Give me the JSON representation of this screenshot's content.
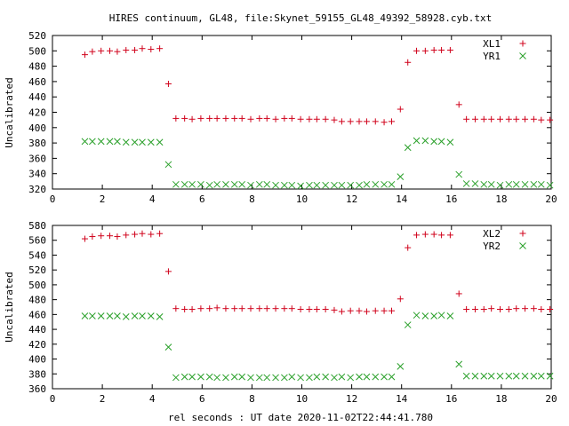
{
  "chart_data": [
    {
      "type": "scatter",
      "title": "HIRES continuum, GL48, file:Skynet_59155_GL48_49392_58928.cyb.txt",
      "xlabel": "",
      "ylabel": "Uncalibrated",
      "xlim": [
        0,
        20
      ],
      "ylim": [
        320,
        520
      ],
      "xticks": [
        0,
        2,
        4,
        6,
        8,
        10,
        12,
        14,
        16,
        18,
        20
      ],
      "yticks": [
        320,
        340,
        360,
        380,
        400,
        420,
        440,
        460,
        480,
        500,
        520
      ],
      "grid": false,
      "legend_position": "top-right",
      "series": [
        {
          "name": "XL1",
          "marker": "plus",
          "color": "#d0021b",
          "points": [
            [
              1.3,
              495
            ],
            [
              1.6,
              499
            ],
            [
              1.95,
              500
            ],
            [
              2.3,
              500
            ],
            [
              2.6,
              499
            ],
            [
              2.95,
              501
            ],
            [
              3.3,
              501
            ],
            [
              3.6,
              503
            ],
            [
              3.95,
              502
            ],
            [
              4.3,
              503
            ],
            [
              4.65,
              457
            ],
            [
              4.95,
              412
            ],
            [
              5.3,
              412
            ],
            [
              5.6,
              411
            ],
            [
              5.95,
              412
            ],
            [
              6.3,
              412
            ],
            [
              6.6,
              412
            ],
            [
              6.95,
              412
            ],
            [
              7.3,
              412
            ],
            [
              7.6,
              412
            ],
            [
              7.95,
              411
            ],
            [
              8.3,
              412
            ],
            [
              8.6,
              412
            ],
            [
              8.95,
              411
            ],
            [
              9.3,
              412
            ],
            [
              9.6,
              412
            ],
            [
              9.95,
              411
            ],
            [
              10.3,
              411
            ],
            [
              10.6,
              411
            ],
            [
              10.95,
              411
            ],
            [
              11.3,
              410
            ],
            [
              11.6,
              408
            ],
            [
              11.95,
              408
            ],
            [
              12.3,
              408
            ],
            [
              12.6,
              408
            ],
            [
              12.95,
              408
            ],
            [
              13.3,
              407
            ],
            [
              13.6,
              408
            ],
            [
              13.95,
              424
            ],
            [
              14.25,
              485
            ],
            [
              14.6,
              500
            ],
            [
              14.95,
              500
            ],
            [
              15.3,
              501
            ],
            [
              15.6,
              501
            ],
            [
              15.95,
              501
            ],
            [
              16.3,
              430
            ],
            [
              16.6,
              411
            ],
            [
              16.95,
              411
            ],
            [
              17.3,
              411
            ],
            [
              17.6,
              411
            ],
            [
              17.95,
              411
            ],
            [
              18.3,
              411
            ],
            [
              18.6,
              411
            ],
            [
              18.95,
              411
            ],
            [
              19.3,
              411
            ],
            [
              19.6,
              410
            ],
            [
              19.95,
              410
            ]
          ]
        },
        {
          "name": "YR1",
          "marker": "cross",
          "color": "#2aa02a",
          "points": [
            [
              1.3,
              382
            ],
            [
              1.6,
              382
            ],
            [
              1.95,
              382
            ],
            [
              2.3,
              382
            ],
            [
              2.6,
              382
            ],
            [
              2.95,
              381
            ],
            [
              3.3,
              381
            ],
            [
              3.6,
              381
            ],
            [
              3.95,
              381
            ],
            [
              4.3,
              381
            ],
            [
              4.65,
              352
            ],
            [
              4.95,
              326
            ],
            [
              5.3,
              326
            ],
            [
              5.6,
              326
            ],
            [
              5.95,
              326
            ],
            [
              6.3,
              325
            ],
            [
              6.6,
              326
            ],
            [
              6.95,
              326
            ],
            [
              7.3,
              326
            ],
            [
              7.6,
              326
            ],
            [
              7.95,
              325
            ],
            [
              8.3,
              326
            ],
            [
              8.6,
              326
            ],
            [
              8.95,
              325
            ],
            [
              9.3,
              325
            ],
            [
              9.6,
              325
            ],
            [
              9.95,
              324
            ],
            [
              10.3,
              325
            ],
            [
              10.6,
              325
            ],
            [
              10.95,
              325
            ],
            [
              11.3,
              325
            ],
            [
              11.6,
              325
            ],
            [
              11.95,
              325
            ],
            [
              12.3,
              325
            ],
            [
              12.6,
              326
            ],
            [
              12.95,
              326
            ],
            [
              13.3,
              326
            ],
            [
              13.6,
              326
            ],
            [
              13.95,
              336
            ],
            [
              14.25,
              374
            ],
            [
              14.6,
              383
            ],
            [
              14.95,
              383
            ],
            [
              15.3,
              382
            ],
            [
              15.6,
              382
            ],
            [
              15.95,
              381
            ],
            [
              16.3,
              339
            ],
            [
              16.6,
              327
            ],
            [
              16.95,
              327
            ],
            [
              17.3,
              326
            ],
            [
              17.6,
              326
            ],
            [
              17.95,
              325
            ],
            [
              18.3,
              326
            ],
            [
              18.6,
              326
            ],
            [
              18.95,
              326
            ],
            [
              19.3,
              326
            ],
            [
              19.6,
              326
            ],
            [
              19.95,
              325
            ]
          ]
        }
      ]
    },
    {
      "type": "scatter",
      "title": "",
      "xlabel": "rel seconds : UT date 2020-11-02T22:44:41.780",
      "ylabel": "Uncalibrated",
      "xlim": [
        0,
        20
      ],
      "ylim": [
        360,
        580
      ],
      "xticks": [
        0,
        2,
        4,
        6,
        8,
        10,
        12,
        14,
        16,
        18,
        20
      ],
      "yticks": [
        360,
        380,
        400,
        420,
        440,
        460,
        480,
        500,
        520,
        540,
        560,
        580
      ],
      "grid": false,
      "legend_position": "top-right",
      "series": [
        {
          "name": "XL2",
          "marker": "plus",
          "color": "#d0021b",
          "points": [
            [
              1.3,
              562
            ],
            [
              1.6,
              565
            ],
            [
              1.95,
              566
            ],
            [
              2.3,
              566
            ],
            [
              2.6,
              565
            ],
            [
              2.95,
              567
            ],
            [
              3.3,
              568
            ],
            [
              3.6,
              569
            ],
            [
              3.95,
              568
            ],
            [
              4.3,
              569
            ],
            [
              4.65,
              518
            ],
            [
              4.95,
              468
            ],
            [
              5.3,
              467
            ],
            [
              5.6,
              467
            ],
            [
              5.95,
              468
            ],
            [
              6.3,
              468
            ],
            [
              6.6,
              469
            ],
            [
              6.95,
              468
            ],
            [
              7.3,
              468
            ],
            [
              7.6,
              468
            ],
            [
              7.95,
              468
            ],
            [
              8.3,
              468
            ],
            [
              8.6,
              468
            ],
            [
              8.95,
              468
            ],
            [
              9.3,
              468
            ],
            [
              9.6,
              468
            ],
            [
              9.95,
              467
            ],
            [
              10.3,
              467
            ],
            [
              10.6,
              467
            ],
            [
              10.95,
              467
            ],
            [
              11.3,
              466
            ],
            [
              11.6,
              464
            ],
            [
              11.95,
              465
            ],
            [
              12.3,
              465
            ],
            [
              12.6,
              464
            ],
            [
              12.95,
              465
            ],
            [
              13.3,
              465
            ],
            [
              13.6,
              465
            ],
            [
              13.95,
              481
            ],
            [
              14.25,
              550
            ],
            [
              14.6,
              567
            ],
            [
              14.95,
              568
            ],
            [
              15.3,
              568
            ],
            [
              15.6,
              567
            ],
            [
              15.95,
              567
            ],
            [
              16.3,
              488
            ],
            [
              16.6,
              467
            ],
            [
              16.95,
              467
            ],
            [
              17.3,
              467
            ],
            [
              17.6,
              468
            ],
            [
              17.95,
              467
            ],
            [
              18.3,
              467
            ],
            [
              18.6,
              468
            ],
            [
              18.95,
              468
            ],
            [
              19.3,
              468
            ],
            [
              19.6,
              467
            ],
            [
              19.95,
              467
            ]
          ]
        },
        {
          "name": "YR2",
          "marker": "cross",
          "color": "#2aa02a",
          "points": [
            [
              1.3,
              458
            ],
            [
              1.6,
              458
            ],
            [
              1.95,
              458
            ],
            [
              2.3,
              458
            ],
            [
              2.6,
              458
            ],
            [
              2.95,
              457
            ],
            [
              3.3,
              458
            ],
            [
              3.6,
              458
            ],
            [
              3.95,
              458
            ],
            [
              4.3,
              457
            ],
            [
              4.65,
              416
            ],
            [
              4.95,
              375
            ],
            [
              5.3,
              376
            ],
            [
              5.6,
              376
            ],
            [
              5.95,
              376
            ],
            [
              6.3,
              376
            ],
            [
              6.6,
              375
            ],
            [
              6.95,
              375
            ],
            [
              7.3,
              376
            ],
            [
              7.6,
              376
            ],
            [
              7.95,
              375
            ],
            [
              8.3,
              375
            ],
            [
              8.6,
              375
            ],
            [
              8.95,
              375
            ],
            [
              9.3,
              375
            ],
            [
              9.6,
              376
            ],
            [
              9.95,
              375
            ],
            [
              10.3,
              375
            ],
            [
              10.6,
              376
            ],
            [
              10.95,
              376
            ],
            [
              11.3,
              375
            ],
            [
              11.6,
              376
            ],
            [
              11.95,
              375
            ],
            [
              12.3,
              376
            ],
            [
              12.6,
              376
            ],
            [
              12.95,
              376
            ],
            [
              13.3,
              376
            ],
            [
              13.6,
              376
            ],
            [
              13.95,
              390
            ],
            [
              14.25,
              446
            ],
            [
              14.6,
              459
            ],
            [
              14.95,
              458
            ],
            [
              15.3,
              458
            ],
            [
              15.6,
              459
            ],
            [
              15.95,
              458
            ],
            [
              16.3,
              393
            ],
            [
              16.6,
              377
            ],
            [
              16.95,
              377
            ],
            [
              17.3,
              377
            ],
            [
              17.6,
              377
            ],
            [
              17.95,
              377
            ],
            [
              18.3,
              377
            ],
            [
              18.6,
              377
            ],
            [
              18.95,
              377
            ],
            [
              19.3,
              377
            ],
            [
              19.6,
              377
            ],
            [
              19.95,
              377
            ]
          ]
        }
      ]
    }
  ]
}
